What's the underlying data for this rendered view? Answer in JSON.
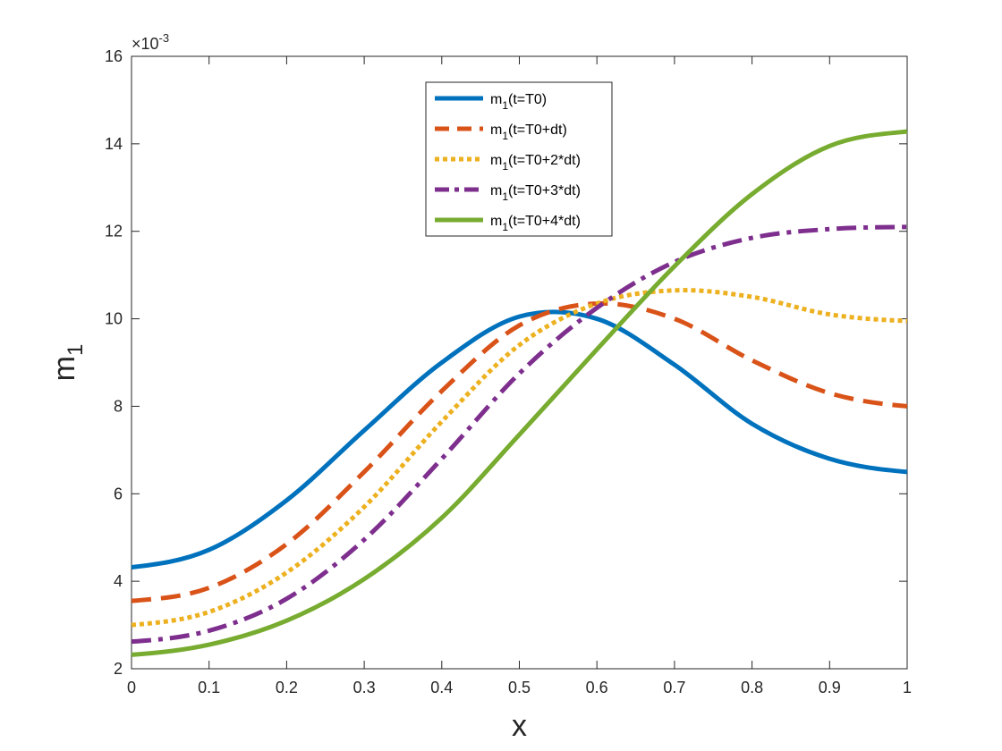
{
  "chart_data": {
    "type": "line",
    "title": "",
    "xlabel": "x",
    "ylabel_main": "m",
    "ylabel_sub": "1",
    "xlim": [
      0,
      1
    ],
    "ylim": [
      2,
      16
    ],
    "y_exponent_label": "×10",
    "y_exponent_power": "-3",
    "x_ticks": [
      {
        "value": 0,
        "label": "0"
      },
      {
        "value": 0.1,
        "label": "0.1"
      },
      {
        "value": 0.2,
        "label": "0.2"
      },
      {
        "value": 0.3,
        "label": "0.3"
      },
      {
        "value": 0.4,
        "label": "0.4"
      },
      {
        "value": 0.5,
        "label": "0.5"
      },
      {
        "value": 0.6,
        "label": "0.6"
      },
      {
        "value": 0.7,
        "label": "0.7"
      },
      {
        "value": 0.8,
        "label": "0.8"
      },
      {
        "value": 0.9,
        "label": "0.9"
      },
      {
        "value": 1,
        "label": "1"
      }
    ],
    "y_ticks": [
      {
        "value": 2,
        "label": "2"
      },
      {
        "value": 4,
        "label": "4"
      },
      {
        "value": 6,
        "label": "6"
      },
      {
        "value": 8,
        "label": "8"
      },
      {
        "value": 10,
        "label": "10"
      },
      {
        "value": 12,
        "label": "12"
      },
      {
        "value": 14,
        "label": "14"
      },
      {
        "value": 16,
        "label": "16"
      }
    ],
    "grid": false,
    "legend_position": "top-center",
    "x": [
      0,
      0.1,
      0.2,
      0.3,
      0.4,
      0.5,
      0.6,
      0.7,
      0.8,
      0.9,
      1.0
    ],
    "series": [
      {
        "name": "m1(t=T0)",
        "legend_base": "m",
        "legend_sub": "1",
        "legend_rest": "(t=T0)",
        "color": "#0072BD",
        "dash": "solid",
        "values": [
          4.32,
          4.72,
          5.85,
          7.45,
          9.0,
          10.05,
          10.0,
          8.95,
          7.6,
          6.8,
          6.5
        ]
      },
      {
        "name": "m1(t=T0+dt)",
        "legend_base": "m",
        "legend_sub": "1",
        "legend_rest": "(t=T0+dt)",
        "color": "#D95319",
        "dash": "dashed",
        "values": [
          3.55,
          3.85,
          4.85,
          6.5,
          8.35,
          9.85,
          10.35,
          10.0,
          9.05,
          8.3,
          8.0
        ]
      },
      {
        "name": "m1(t=T0+2*dt)",
        "legend_base": "m",
        "legend_sub": "1",
        "legend_rest": "(t=T0+2*dt)",
        "color": "#EDB120",
        "dash": "dotted",
        "values": [
          3.0,
          3.3,
          4.2,
          5.7,
          7.65,
          9.4,
          10.35,
          10.65,
          10.5,
          10.1,
          9.95
        ]
      },
      {
        "name": "m1(t=T0+3*dt)",
        "legend_base": "m",
        "legend_sub": "1",
        "legend_rest": "(t=T0+3*dt)",
        "color": "#7E2F8E",
        "dash": "dashdot",
        "values": [
          2.62,
          2.87,
          3.6,
          4.95,
          6.8,
          8.75,
          10.25,
          11.3,
          11.85,
          12.05,
          12.1
        ]
      },
      {
        "name": "m1(t=T0+4*dt)",
        "legend_base": "m",
        "legend_sub": "1",
        "legend_rest": "(t=T0+4*dt)",
        "color": "#77AC30",
        "dash": "solid",
        "values": [
          2.32,
          2.55,
          3.1,
          4.05,
          5.45,
          7.35,
          9.3,
          11.2,
          12.85,
          13.95,
          14.28
        ]
      }
    ]
  }
}
